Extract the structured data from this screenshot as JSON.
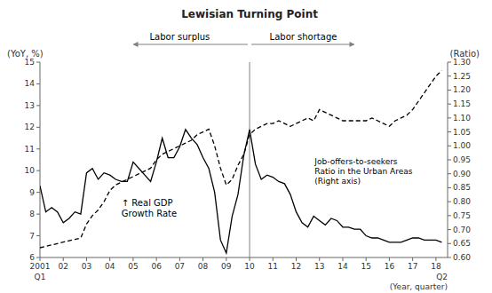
{
  "chart_data": {
    "type": "line",
    "title": "Lewisian Turning Point",
    "x_label": "(Year, quarter)",
    "y_label": "(YoY, %)",
    "y2_label": "(Ratio)",
    "annotations": [
      "Labor surplus",
      "Labor shortage",
      "↑ Real GDP\nGrowth Rate",
      "Job-offers-to-seekers\nRatio in the Urban Areas\n(Right axis)",
      "Q1",
      "Q2"
    ],
    "x": [
      2001.0,
      2001.25,
      2001.5,
      2001.75,
      2002.0,
      2002.25,
      2002.5,
      2002.75,
      2003.0,
      2003.25,
      2003.5,
      2003.75,
      2004.0,
      2004.25,
      2004.5,
      2004.75,
      2005.0,
      2005.25,
      2005.5,
      2005.75,
      2006.0,
      2006.25,
      2006.5,
      2006.75,
      2007.0,
      2007.25,
      2007.5,
      2007.75,
      2008.0,
      2008.25,
      2008.5,
      2008.75,
      2009.0,
      2009.25,
      2009.5,
      2009.75,
      2010.0,
      2010.25,
      2010.5,
      2010.75,
      2011.0,
      2011.25,
      2011.5,
      2011.75,
      2012.0,
      2012.25,
      2012.5,
      2012.75,
      2013.0,
      2013.25,
      2013.5,
      2013.75,
      2014.0,
      2014.25,
      2014.5,
      2014.75,
      2015.0,
      2015.25,
      2015.5,
      2015.75,
      2016.0,
      2016.25,
      2016.5,
      2016.75,
      2017.0,
      2017.25,
      2017.5,
      2017.75,
      2018.0,
      2018.25
    ],
    "series": [
      {
        "color": "#000000",
        "line_style": "solid",
        "values": [
          9.3,
          8.1,
          8.3,
          8.1,
          7.6,
          7.8,
          8.1,
          8.0,
          9.9,
          10.1,
          9.6,
          9.9,
          9.8,
          9.6,
          9.5,
          9.5,
          10.4,
          10.1,
          9.8,
          9.5,
          10.4,
          11.5,
          10.6,
          10.6,
          11.1,
          11.9,
          11.5,
          11.2,
          10.6,
          10.1,
          9.0,
          6.8,
          6.2,
          7.9,
          8.9,
          10.7,
          11.9,
          10.3,
          9.6,
          9.8,
          9.7,
          9.5,
          9.4,
          8.9,
          8.1,
          7.6,
          7.4,
          7.9,
          7.7,
          7.5,
          7.8,
          7.7,
          7.4,
          7.4,
          7.3,
          7.3,
          7.0,
          6.9,
          6.9,
          6.8,
          6.7,
          6.7,
          6.7,
          6.8,
          6.9,
          6.9,
          6.8,
          6.8,
          6.8,
          6.7
        ]
      },
      {
        "color": "#000000",
        "line_style": "dashed",
        "axis": "y2",
        "values": [
          0.635,
          0.64,
          0.645,
          0.65,
          0.655,
          0.66,
          0.665,
          0.67,
          0.72,
          0.75,
          0.77,
          0.8,
          0.84,
          0.86,
          0.87,
          0.88,
          0.89,
          0.9,
          0.91,
          0.92,
          0.95,
          0.97,
          0.98,
          0.99,
          1.0,
          1.01,
          1.02,
          1.04,
          1.05,
          1.06,
          1.0,
          0.92,
          0.86,
          0.88,
          0.93,
          0.97,
          1.04,
          1.06,
          1.07,
          1.08,
          1.08,
          1.09,
          1.08,
          1.07,
          1.08,
          1.09,
          1.1,
          1.09,
          1.13,
          1.12,
          1.11,
          1.1,
          1.09,
          1.09,
          1.09,
          1.09,
          1.09,
          1.1,
          1.09,
          1.08,
          1.07,
          1.09,
          1.1,
          1.11,
          1.13,
          1.16,
          1.19,
          1.22,
          1.25,
          1.27
        ]
      }
    ],
    "turning_point": 2010.0,
    "xlim": [
      2001.0,
      2018.5
    ],
    "xticks": [
      2001,
      {
        "value": 2002,
        "label": "02"
      },
      {
        "value": 2003,
        "label": "03"
      },
      {
        "value": 2004,
        "label": "04"
      },
      {
        "value": 2005,
        "label": "05"
      },
      {
        "value": 2006,
        "label": "06"
      },
      {
        "value": 2007,
        "label": "07"
      },
      {
        "value": 2008,
        "label": "08"
      },
      {
        "value": 2009,
        "label": "09"
      },
      {
        "value": 2010,
        "label": "10"
      },
      {
        "value": 2011,
        "label": "11"
      },
      {
        "value": 2012,
        "label": "12"
      },
      {
        "value": 2013,
        "label": "13"
      },
      {
        "value": 2014,
        "label": "14"
      },
      {
        "value": 2015,
        "label": "15"
      },
      {
        "value": 2016,
        "label": "16"
      },
      {
        "value": 2017,
        "label": "17"
      },
      {
        "value": 2018,
        "label": "18"
      }
    ],
    "ylim": [
      6,
      15
    ],
    "yticks": [
      6,
      7,
      8,
      9,
      10,
      11,
      12,
      13,
      14,
      15
    ],
    "y2lim": [
      0.6,
      1.3
    ],
    "y2ticks": [
      {
        "value": 0.6,
        "label": "0.60"
      },
      0.65,
      {
        "value": 0.7,
        "label": "0.70"
      },
      0.75,
      {
        "value": 0.8,
        "label": "0.80"
      },
      0.85,
      {
        "value": 0.9,
        "label": "0.90"
      },
      0.95,
      {
        "value": 1.0,
        "label": "1.00"
      },
      1.05,
      {
        "value": 1.1,
        "label": "1.10"
      },
      1.15,
      {
        "value": 1.2,
        "label": "1.20"
      },
      1.25,
      {
        "value": 1.3,
        "label": "1.30"
      }
    ],
    "grid": false
  }
}
